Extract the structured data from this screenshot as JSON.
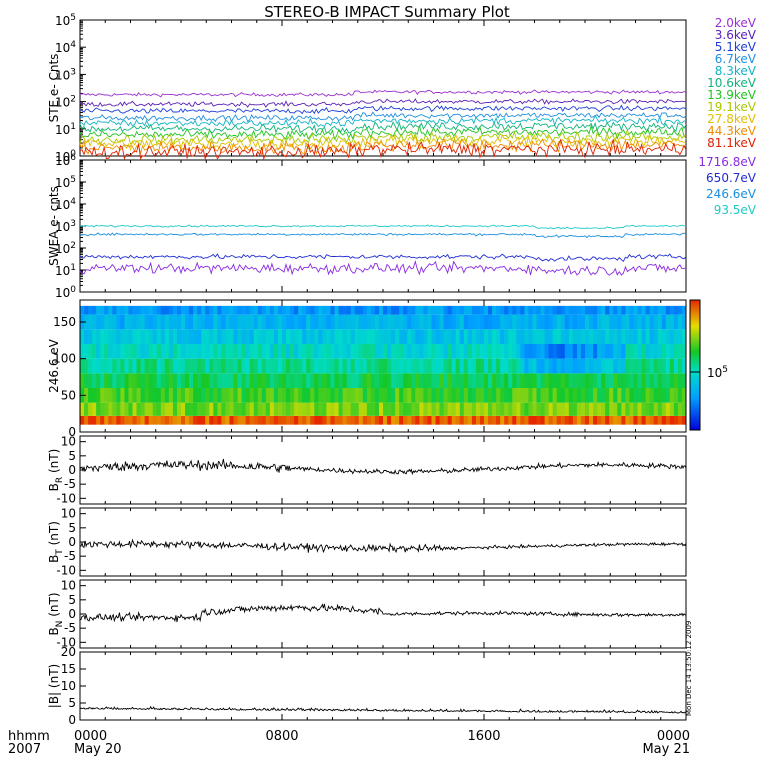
{
  "title": "STEREO-B IMPACT Summary Plot",
  "chart_data": [
    {
      "type": "line",
      "ylabel": "STE e- Cnts",
      "yscale": "log",
      "ylim": [
        1,
        100000
      ],
      "yticks": [
        "10^0",
        "10^1",
        "10^2",
        "10^3",
        "10^4",
        "10^5"
      ],
      "legend_placement": "right",
      "series": [
        {
          "name": "2.0keV",
          "color": "#9b30d0",
          "level": 180,
          "noise": 0.06
        },
        {
          "name": "3.6keV",
          "color": "#5b21b6",
          "level": 80,
          "noise": 0.08
        },
        {
          "name": "5.1keV",
          "color": "#1d3fd6",
          "level": 45,
          "noise": 0.09
        },
        {
          "name": "6.7keV",
          "color": "#1f8fe0",
          "level": 25,
          "noise": 0.1
        },
        {
          "name": "8.3keV",
          "color": "#11b3c8",
          "level": 16,
          "noise": 0.12
        },
        {
          "name": "10.6keV",
          "color": "#10b37a",
          "level": 10,
          "noise": 0.14
        },
        {
          "name": "13.9keV",
          "color": "#22c422",
          "level": 6,
          "noise": 0.16
        },
        {
          "name": "19.1keV",
          "color": "#a8c800",
          "level": 4,
          "noise": 0.18
        },
        {
          "name": "27.8keV",
          "color": "#e0c000",
          "level": 2.8,
          "noise": 0.2
        },
        {
          "name": "44.3keV",
          "color": "#f08c00",
          "level": 2,
          "noise": 0.22
        },
        {
          "name": "81.1keV",
          "color": "#e02000",
          "level": 1.4,
          "noise": 0.24
        }
      ]
    },
    {
      "type": "line",
      "ylabel": "SWEA e- cnts",
      "yscale": "log",
      "ylim": [
        1,
        1000000
      ],
      "yticks": [
        "10^0",
        "10^1",
        "10^2",
        "10^3",
        "10^4",
        "10^5",
        "10^6"
      ],
      "legend_placement": "right",
      "series": [
        {
          "name": "1716.8eV",
          "color": "#8a2be2",
          "level": 12,
          "noise": 0.22
        },
        {
          "name": "650.7eV",
          "color": "#1e2bd6",
          "level": 40,
          "noise": 0.1
        },
        {
          "name": "246.6eV",
          "color": "#1a8fe0",
          "level": 420,
          "noise": 0.05
        },
        {
          "name": "93.5eV",
          "color": "#20c8c8",
          "level": 1000,
          "noise": 0.04
        }
      ]
    },
    {
      "type": "heatmap",
      "ylabel": "246.6 eV",
      "ylim": [
        0,
        180
      ],
      "yticks": [
        "0",
        "50",
        "100",
        "150"
      ],
      "colorbar_tick": "10^5"
    },
    {
      "type": "line",
      "ylabel": "B_R (nT)",
      "ylim": [
        -12,
        12
      ],
      "yticks": [
        "-10",
        "-5",
        "0",
        "5",
        "10"
      ],
      "color": "#000000"
    },
    {
      "type": "line",
      "ylabel": "B_T (nT)",
      "ylim": [
        -12,
        12
      ],
      "yticks": [
        "-10",
        "-5",
        "0",
        "5",
        "10"
      ],
      "color": "#000000"
    },
    {
      "type": "line",
      "ylabel": "B_N (nT)",
      "ylim": [
        -12,
        12
      ],
      "yticks": [
        "-10",
        "-5",
        "0",
        "5",
        "10"
      ],
      "color": "#000000"
    },
    {
      "type": "line",
      "ylabel": "|B| (nT)",
      "ylim": [
        0,
        20
      ],
      "yticks": [
        "0",
        "5",
        "10",
        "15",
        "20"
      ],
      "color": "#000000"
    }
  ],
  "xaxis": {
    "ticks": [
      {
        "label": "0000",
        "sublabel": "May 20",
        "hour": 0
      },
      {
        "label": "0800",
        "sublabel": "",
        "hour": 8
      },
      {
        "label": "1600",
        "sublabel": "",
        "hour": 16
      },
      {
        "label": "0000",
        "sublabel": "May 21",
        "hour": 24
      }
    ],
    "range_hours": [
      0,
      24
    ],
    "left_label_top": "hhmm",
    "left_label_bottom": "2007"
  },
  "timestamp": "Mon Dec 14 13:50:12 2009"
}
